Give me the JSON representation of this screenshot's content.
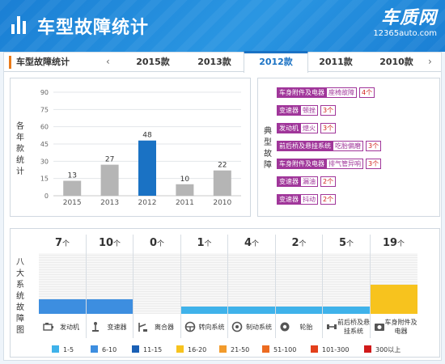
{
  "header": {
    "title": "车型故障统计",
    "brand_name": "车质网",
    "brand_url": "12365auto.com"
  },
  "tabs": {
    "section_label": "车型故障统计",
    "prev_arrow": "‹",
    "next_arrow": "›",
    "items": [
      "2015款",
      "2013款",
      "2012款",
      "2011款",
      "2010款"
    ],
    "active_index": 2
  },
  "colors": {
    "accent": "#1a72c4",
    "bar_default": "#b5b5b5",
    "bar_active": "#1a72c4",
    "fault_tag": "#a0369a"
  },
  "chart_data": [
    {
      "type": "bar",
      "categories": [
        "2015",
        "2013",
        "2012",
        "2011",
        "2010"
      ],
      "values": [
        13,
        27,
        48,
        10,
        22
      ],
      "highlight_index": 2,
      "ylabel": "各年款统计",
      "ylim": [
        0,
        90
      ],
      "yticks": [
        0,
        15,
        30,
        45,
        60,
        75,
        90
      ],
      "grid": true
    },
    {
      "type": "bar",
      "ylabel": "八大系统故障图",
      "categories": [
        "发动机",
        "变速器",
        "离合器",
        "转向系统",
        "制动系统",
        "轮胎",
        "前后桥及悬挂系统",
        "车身附件及电器"
      ],
      "values": [
        7,
        10,
        0,
        1,
        4,
        2,
        5,
        19
      ],
      "count_unit": "个",
      "legend": [
        {
          "label": "1-5",
          "color": "#3fb2ea"
        },
        {
          "label": "6-10",
          "color": "#3d8ee0"
        },
        {
          "label": "11-15",
          "color": "#1a60b5"
        },
        {
          "label": "16-20",
          "color": "#f7c31e"
        },
        {
          "label": "21-50",
          "color": "#f29b2c"
        },
        {
          "label": "51-100",
          "color": "#ec6b21"
        },
        {
          "label": "101-300",
          "color": "#e3401b"
        },
        {
          "label": "300以上",
          "color": "#d11a1a"
        }
      ]
    }
  ],
  "typical_faults": {
    "label": "典型故障",
    "items": [
      {
        "category": "车身附件及电器",
        "description": "座椅故障",
        "count": "4个"
      },
      {
        "category": "变速器",
        "description": "顿挫",
        "count": "3个"
      },
      {
        "category": "发动机",
        "description": "熄火",
        "count": "3个"
      },
      {
        "category": "前后桥及悬挂系统",
        "description": "吃胎偏磨",
        "count": "3个"
      },
      {
        "category": "车身附件及电器",
        "description": "排气管异响",
        "count": "3个"
      },
      {
        "category": "变速器",
        "description": "漏油",
        "count": "2个"
      },
      {
        "category": "变速器",
        "description": "抖动",
        "count": "2个"
      }
    ]
  }
}
